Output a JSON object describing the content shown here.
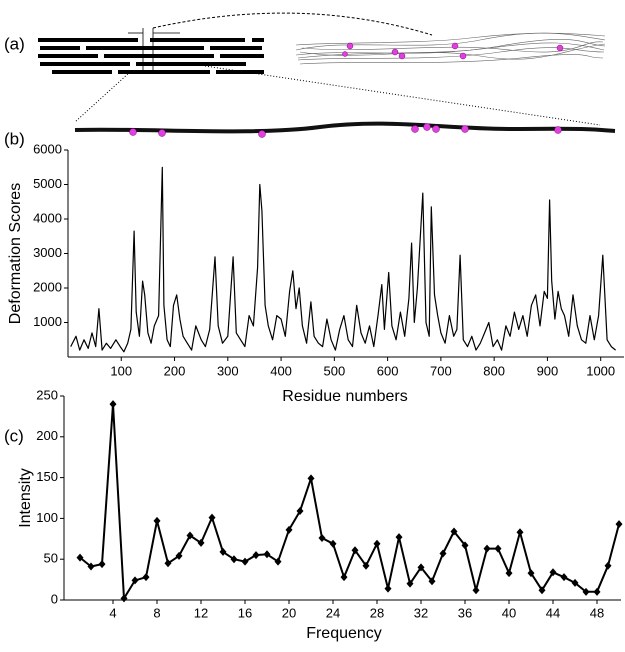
{
  "panel_labels": [
    "(a)",
    "(b)",
    "(c)"
  ],
  "chart_data": [
    {
      "type": "line",
      "ylabel": "Deformation Scores",
      "xlabel": "Residue numbers",
      "xlim": [
        0,
        1040
      ],
      "ylim": [
        0,
        6000
      ],
      "xticks": [
        100,
        200,
        300,
        400,
        500,
        600,
        700,
        800,
        900,
        1000
      ],
      "yticks": [
        1000,
        2000,
        3000,
        4000,
        5000,
        6000
      ],
      "x": [
        5,
        15,
        22,
        30,
        38,
        45,
        52,
        58,
        64,
        72,
        80,
        90,
        98,
        105,
        112,
        118,
        124,
        128,
        134,
        140,
        144,
        150,
        156,
        162,
        170,
        177,
        180,
        186,
        192,
        198,
        204,
        210,
        216,
        224,
        232,
        240,
        250,
        258,
        266,
        276,
        282,
        290,
        300,
        310,
        316,
        324,
        332,
        340,
        348,
        356,
        360,
        364,
        370,
        376,
        384,
        392,
        400,
        408,
        416,
        422,
        428,
        434,
        440,
        448,
        456,
        462,
        470,
        478,
        486,
        494,
        502,
        510,
        518,
        526,
        534,
        542,
        550,
        558,
        566,
        574,
        582,
        589,
        594,
        602,
        608,
        616,
        624,
        632,
        640,
        645,
        650,
        656,
        666,
        672,
        678,
        682,
        688,
        694,
        700,
        708,
        716,
        724,
        730,
        736,
        742,
        750,
        758,
        766,
        774,
        782,
        790,
        798,
        806,
        814,
        822,
        830,
        838,
        846,
        854,
        862,
        870,
        878,
        886,
        894,
        900,
        904,
        908,
        914,
        920,
        926,
        932,
        940,
        948,
        956,
        964,
        972,
        980,
        988,
        996,
        1004,
        1012,
        1020,
        1028
      ],
      "series": [
        {
          "color": "#000000",
          "values": [
            300,
            600,
            200,
            500,
            250,
            700,
            300,
            1400,
            200,
            400,
            250,
            500,
            300,
            150,
            400,
            800,
            3650,
            1300,
            600,
            2200,
            1800,
            700,
            400,
            900,
            1200,
            5500,
            1500,
            500,
            300,
            1500,
            1800,
            1100,
            600,
            400,
            200,
            900,
            500,
            300,
            800,
            2900,
            900,
            400,
            600,
            2900,
            700,
            500,
            300,
            1200,
            900,
            2600,
            5000,
            4250,
            1500,
            900,
            500,
            1200,
            1100,
            600,
            1900,
            2500,
            1400,
            2000,
            900,
            400,
            1600,
            600,
            400,
            300,
            1100,
            500,
            200,
            800,
            1200,
            500,
            300,
            1500,
            700,
            400,
            900,
            300,
            1200,
            2100,
            800,
            2450,
            900,
            500,
            1300,
            600,
            1700,
            3300,
            1000,
            2000,
            4750,
            1000,
            600,
            4350,
            1800,
            1200,
            700,
            400,
            1200,
            600,
            800,
            2950,
            500,
            300,
            600,
            200,
            400,
            700,
            1000,
            300,
            500,
            200,
            900,
            600,
            1300,
            800,
            1200,
            600,
            1500,
            1800,
            900,
            1900,
            1700,
            4550,
            2200,
            1100,
            1900,
            1400,
            1200,
            600,
            1800,
            900,
            500,
            400,
            1200,
            500,
            1200,
            2950,
            500,
            300,
            200
          ]
        }
      ]
    },
    {
      "type": "line",
      "ylabel": "Intensity",
      "xlabel": "Frequency",
      "marker": "diamond",
      "xlim": [
        0,
        50
      ],
      "ylim": [
        0,
        250
      ],
      "xticks": [
        4,
        8,
        12,
        16,
        20,
        24,
        28,
        32,
        36,
        40,
        44,
        48
      ],
      "yticks": [
        0,
        50,
        100,
        150,
        200,
        250
      ],
      "x": [
        1,
        2,
        3,
        4,
        5,
        6,
        7,
        8,
        9,
        10,
        11,
        12,
        13,
        14,
        15,
        16,
        17,
        18,
        19,
        20,
        21,
        22,
        23,
        24,
        25,
        26,
        27,
        28,
        29,
        30,
        31,
        32,
        33,
        34,
        35,
        36,
        37,
        38,
        39,
        40,
        41,
        42,
        43,
        44,
        45,
        46,
        47,
        48,
        49,
        50
      ],
      "series": [
        {
          "color": "#000000",
          "values": [
            52,
            41,
            44,
            240,
            2,
            24,
            28,
            97,
            45,
            54,
            79,
            70,
            101,
            59,
            50,
            47,
            55,
            56,
            47,
            86,
            109,
            149,
            76,
            69,
            28,
            61,
            42,
            69,
            14,
            77,
            20,
            40,
            23,
            57,
            84,
            67,
            12,
            63,
            63,
            33,
            83,
            33,
            12,
            34,
            28,
            21,
            10,
            10,
            42,
            93
          ]
        }
      ]
    }
  ]
}
